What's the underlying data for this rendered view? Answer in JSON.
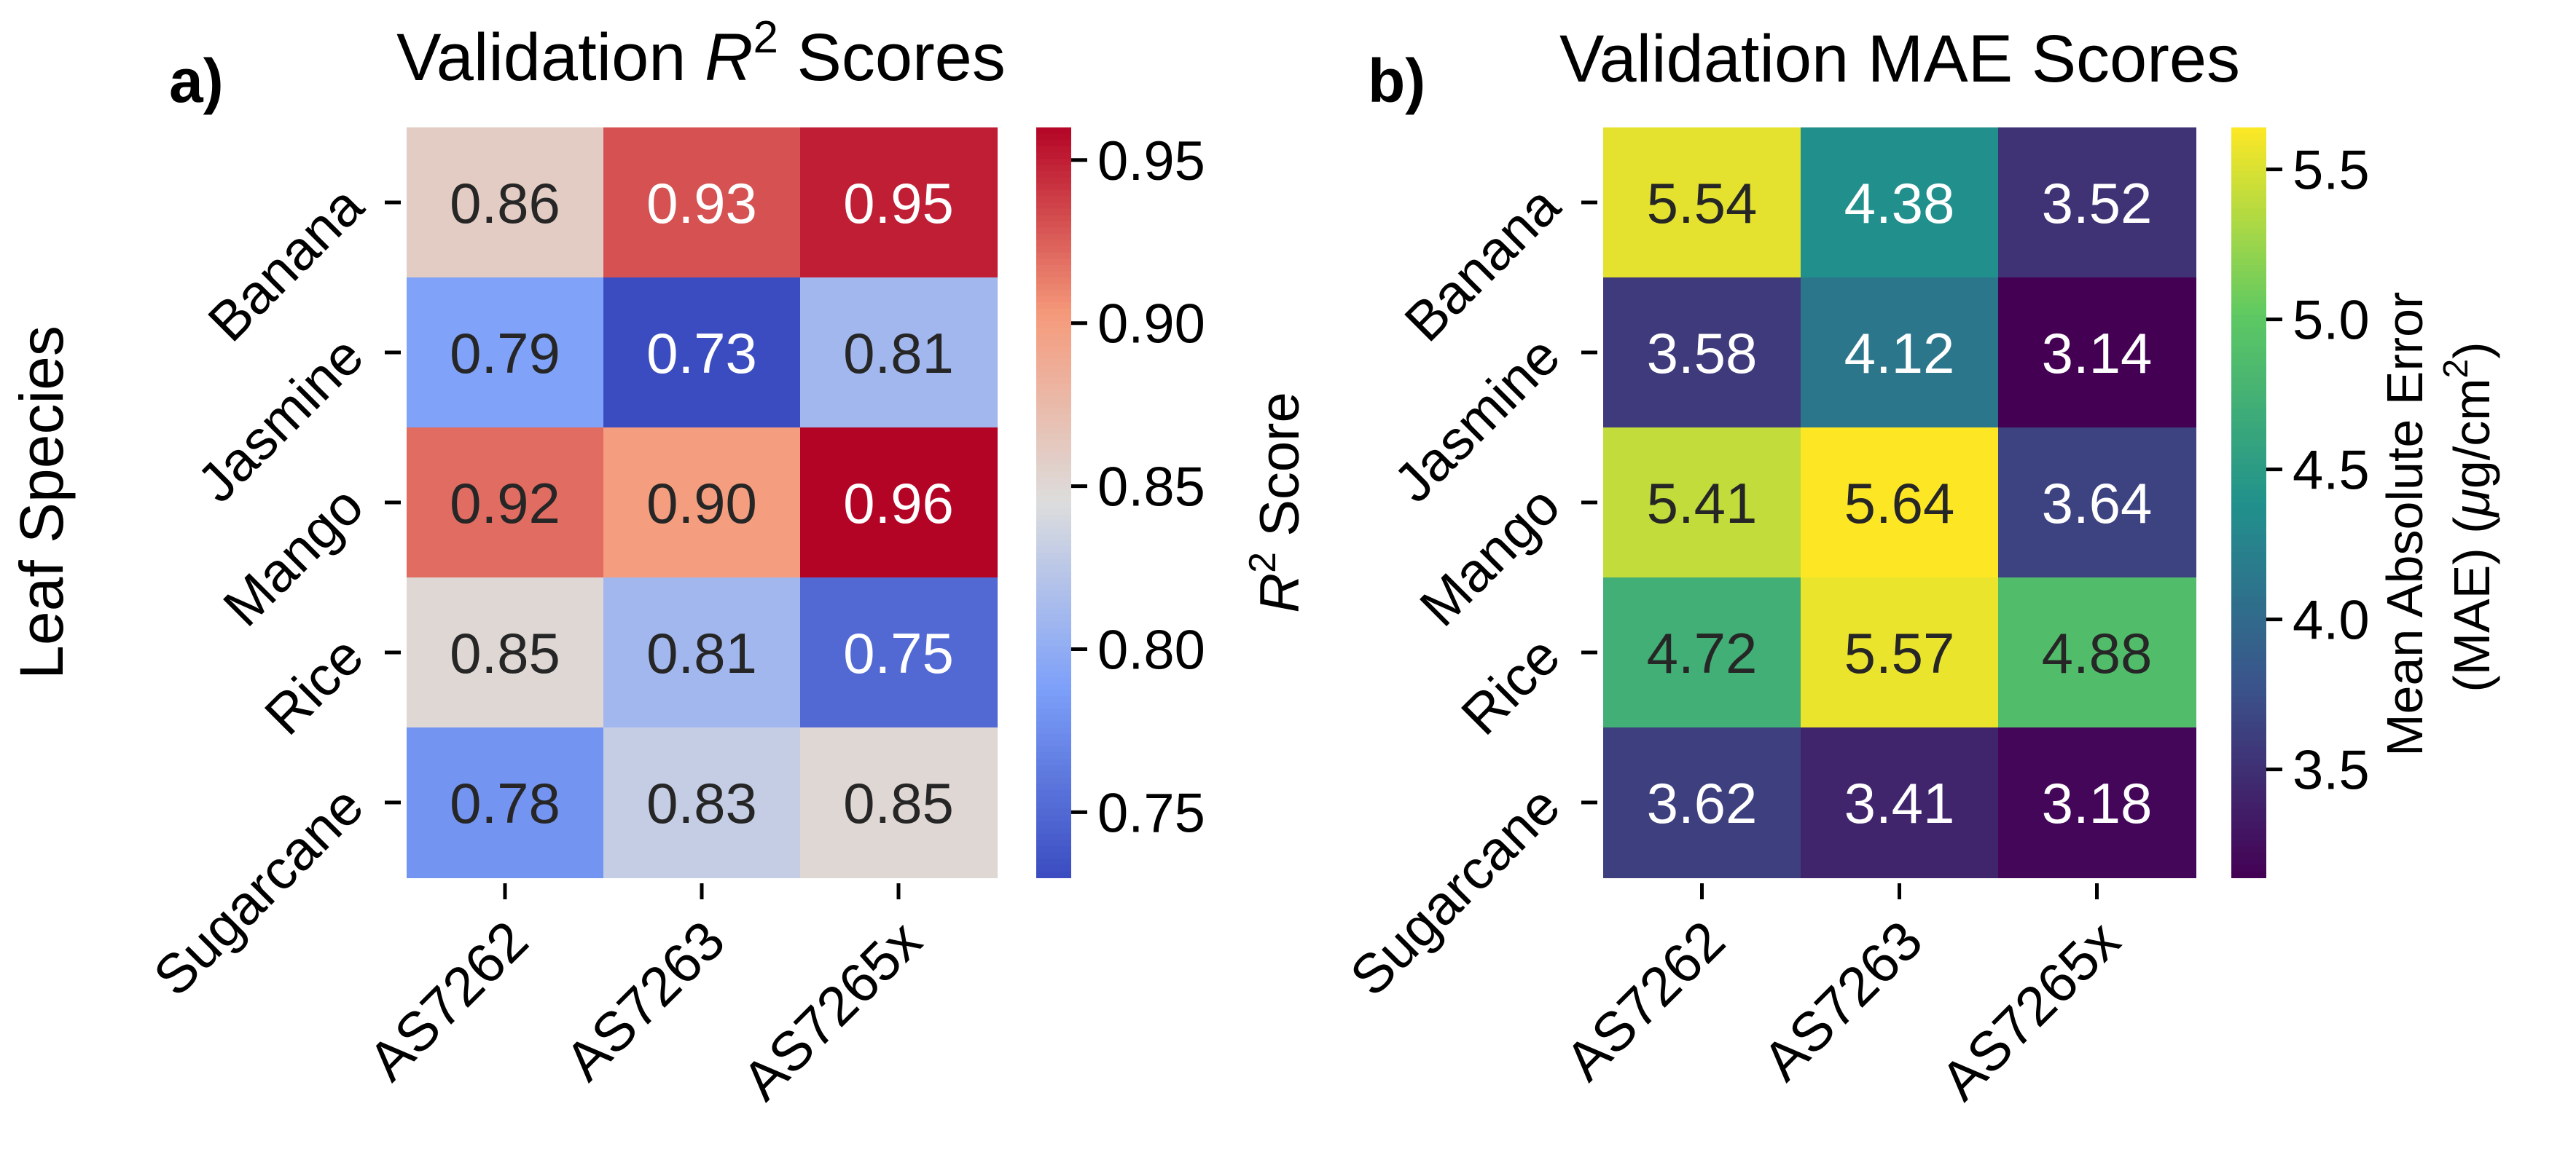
{
  "figure": {
    "ylabel": "Leaf Species"
  },
  "chart_data": [
    {
      "type": "heatmap",
      "panel_label": "a)",
      "title_prefix": "Validation ",
      "title_var": "R",
      "title_sup": "2",
      "title_suffix": " Scores",
      "rows": [
        "Banana",
        "Jasmine",
        "Mango",
        "Rice",
        "Sugarcane"
      ],
      "columns": [
        "AS7262",
        "AS7263",
        "AS7265x"
      ],
      "values": [
        [
          0.86,
          0.93,
          0.95
        ],
        [
          0.79,
          0.73,
          0.81
        ],
        [
          0.92,
          0.9,
          0.96
        ],
        [
          0.85,
          0.81,
          0.75
        ],
        [
          0.78,
          0.83,
          0.85
        ]
      ],
      "value_labels": [
        [
          "0.86",
          "0.93",
          "0.95"
        ],
        [
          "0.79",
          "0.73",
          "0.81"
        ],
        [
          "0.92",
          "0.90",
          "0.96"
        ],
        [
          "0.85",
          "0.81",
          "0.75"
        ],
        [
          "0.78",
          "0.83",
          "0.85"
        ]
      ],
      "colormap": "coolwarm",
      "colorbar": {
        "min": 0.73,
        "max": 0.96,
        "ticks": [
          0.75,
          0.8,
          0.85,
          0.9,
          0.95
        ],
        "tick_labels": [
          "0.75",
          "0.80",
          "0.85",
          "0.90",
          "0.95"
        ],
        "label_var": "R",
        "label_sup": "2",
        "label_suffix": " Score"
      }
    },
    {
      "type": "heatmap",
      "panel_label": "b)",
      "title": "Validation MAE Scores",
      "rows": [
        "Banana",
        "Jasmine",
        "Mango",
        "Rice",
        "Sugarcane"
      ],
      "columns": [
        "AS7262",
        "AS7263",
        "AS7265x"
      ],
      "values": [
        [
          5.54,
          4.38,
          3.52
        ],
        [
          3.58,
          4.12,
          3.14
        ],
        [
          5.41,
          5.64,
          3.64
        ],
        [
          4.72,
          5.57,
          4.88
        ],
        [
          3.62,
          3.41,
          3.18
        ]
      ],
      "value_labels": [
        [
          "5.54",
          "4.38",
          "3.52"
        ],
        [
          "3.58",
          "4.12",
          "3.14"
        ],
        [
          "5.41",
          "5.64",
          "3.64"
        ],
        [
          "4.72",
          "5.57",
          "4.88"
        ],
        [
          "3.62",
          "3.41",
          "3.18"
        ]
      ],
      "colormap": "viridis",
      "colorbar": {
        "min": 3.14,
        "max": 5.64,
        "ticks": [
          3.5,
          4.0,
          4.5,
          5.0,
          5.5
        ],
        "tick_labels": [
          "3.5",
          "4.0",
          "4.5",
          "5.0",
          "5.5"
        ],
        "label_line1": "Mean Absolute Error",
        "label_line2_prefix": "(MAE) (",
        "label_line2_mu": "μ",
        "label_line2_unit": "g/cm",
        "label_line2_sup": "2",
        "label_line2_suffix": ")"
      }
    }
  ]
}
